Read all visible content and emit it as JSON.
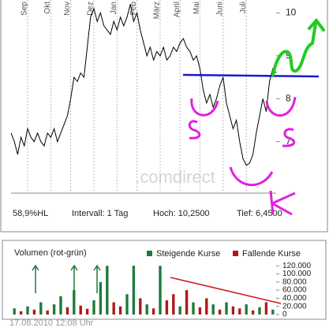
{
  "chart_data": [
    {
      "type": "line",
      "color": "#000000",
      "x": [
        0,
        1,
        2,
        3,
        4,
        5,
        6,
        7,
        8,
        9,
        10,
        11,
        12,
        13,
        14,
        15,
        16,
        17,
        18,
        19,
        20,
        21,
        22,
        23,
        24,
        25,
        26,
        27,
        28,
        29,
        30,
        31,
        32,
        33,
        34,
        35,
        36,
        37,
        38,
        39,
        40,
        41,
        42,
        43,
        44,
        45,
        46,
        47,
        48,
        49,
        50,
        51,
        52,
        53,
        54,
        55,
        56,
        57,
        58,
        59,
        60,
        61,
        62,
        63,
        64,
        65,
        66,
        67,
        68,
        69,
        70,
        71,
        72,
        73,
        74,
        75,
        76,
        77,
        78,
        79,
        80
      ],
      "values": [
        7.2,
        7.0,
        6.7,
        7.1,
        6.9,
        7.3,
        7.1,
        7.0,
        7.2,
        7.0,
        6.9,
        7.2,
        7.1,
        7.3,
        7.0,
        7.2,
        7.4,
        7.6,
        8.0,
        8.5,
        8.4,
        8.6,
        8.5,
        9.2,
        9.9,
        10.1,
        9.8,
        10.0,
        9.7,
        9.6,
        9.5,
        9.8,
        9.6,
        9.9,
        9.7,
        9.9,
        10.2,
        9.8,
        10.0,
        9.6,
        9.3,
        9.0,
        9.2,
        8.9,
        9.1,
        9.0,
        9.2,
        8.9,
        9.0,
        9.2,
        9.1,
        9.3,
        9.4,
        9.2,
        9.1,
        8.9,
        9.0,
        8.7,
        8.2,
        7.9,
        8.1,
        7.8,
        8.0,
        8.3,
        8.5,
        7.9,
        7.6,
        7.3,
        7.5,
        7.0,
        6.6,
        6.45,
        6.5,
        6.7,
        7.2,
        7.6,
        8.0,
        7.7,
        8.4,
        8.7,
        8.6
      ],
      "xlim": [
        0,
        80
      ],
      "xticks": [
        {
          "value": 5,
          "label": "Sep"
        },
        {
          "value": 12,
          "label": "Okt"
        },
        {
          "value": 18,
          "label": "Nov"
        },
        {
          "value": 25,
          "label": "Dez"
        },
        {
          "value": 32,
          "label": "Jan"
        },
        {
          "value": 38,
          "label": "Feb"
        },
        {
          "value": 45,
          "label": "März"
        },
        {
          "value": 51,
          "label": "April"
        },
        {
          "value": 57,
          "label": "Mai"
        },
        {
          "value": 64,
          "label": "Juni"
        },
        {
          "value": 71,
          "label": "Juli"
        }
      ],
      "ylim": [
        5.8,
        10.3
      ],
      "yticks": [
        7,
        8,
        9,
        10
      ],
      "grid": true,
      "watermark": ".comdirect",
      "stats": [
        "58,9%HL",
        "Intervall: 1 Tag",
        "Hoch: 10,2500",
        "Tief: 6,4500"
      ]
    },
    {
      "type": "bar",
      "title": "Volumen (rot-grün)",
      "categories": [
        null,
        null,
        null,
        null,
        null,
        null,
        null,
        null,
        null,
        null,
        null,
        null,
        null,
        null,
        null,
        null,
        null,
        null,
        null,
        null,
        null,
        null,
        null,
        null,
        null,
        null,
        null,
        null,
        null,
        null,
        null,
        null,
        null,
        null,
        null,
        null,
        null,
        null,
        null,
        null
      ],
      "series": [
        {
          "name": "Steigende Kurse",
          "color": "#1e7a3c",
          "values": [
            15000,
            null,
            20000,
            null,
            30000,
            null,
            25000,
            45000,
            null,
            60000,
            null,
            null,
            35000,
            80000,
            120000,
            null,
            null,
            50000,
            120000,
            null,
            25000,
            null,
            120000,
            null,
            null,
            20000,
            null,
            30000,
            null,
            null,
            25000,
            null,
            30000,
            null,
            null,
            25000,
            null,
            18000,
            null,
            12000
          ]
        },
        {
          "name": "Fallende Kurse",
          "color": "#b01818",
          "values": [
            null,
            8000,
            null,
            12000,
            null,
            10000,
            null,
            null,
            18000,
            null,
            22000,
            14000,
            null,
            null,
            null,
            30000,
            20000,
            null,
            null,
            40000,
            null,
            15000,
            null,
            35000,
            50000,
            null,
            60000,
            null,
            18000,
            40000,
            null,
            12000,
            null,
            20000,
            15000,
            null,
            10000,
            null,
            30000,
            null
          ]
        }
      ],
      "ylim": [
        0,
        125000
      ],
      "yticks": [
        0,
        {
          "value": 20000,
          "label": "20.000"
        },
        {
          "value": 40000,
          "label": "40.000"
        },
        {
          "value": 60000,
          "label": "60.000"
        },
        {
          "value": 80000,
          "label": "80.000"
        },
        {
          "value": 100000,
          "label": "100.000"
        },
        {
          "value": 120000,
          "label": "120.000"
        }
      ],
      "footer": "17.08.2010 12:08 Uhr"
    }
  ]
}
